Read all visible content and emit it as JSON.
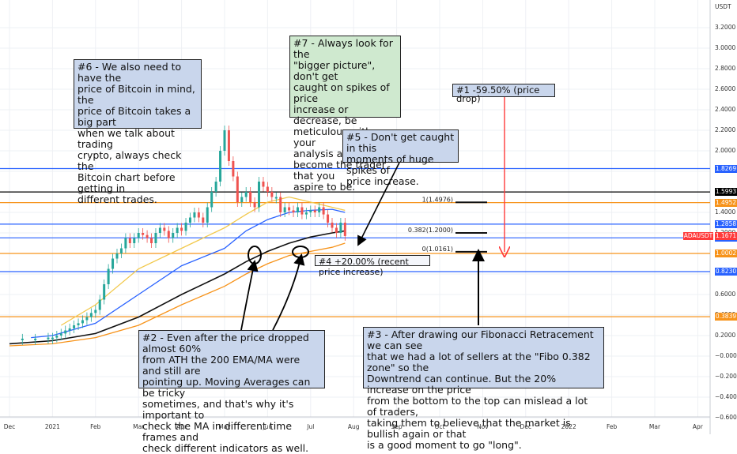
{
  "chart_data": {
    "type": "line",
    "ticker_label": "ADAUSDT",
    "unit_label": "USDT",
    "y_ticks": [
      "3.2000",
      "3.0000",
      "2.8000",
      "2.6000",
      "2.4000",
      "2.2000",
      "2.0000",
      "1.8000",
      "1.6000",
      "1.4000",
      "1.2000",
      "1.0000",
      "0.8000",
      "0.6000",
      "0.4000",
      "0.2000",
      "−0.0000",
      "−0.2000",
      "−0.4000",
      "−0.6000"
    ],
    "y_tick_values": [
      3.2,
      3.0,
      2.8,
      2.6,
      2.4,
      2.2,
      2.0,
      1.8,
      1.6,
      1.4,
      1.2,
      1.0,
      0.8,
      0.6,
      0.4,
      0.2,
      0.0,
      -0.2,
      -0.4,
      -0.6
    ],
    "ylim": [
      -0.65,
      3.35
    ],
    "x_ticks": [
      "Dec",
      "2021",
      "Feb",
      "Mar",
      "Apr",
      "May",
      "Jun",
      "Jul",
      "Aug",
      "Sep",
      "Oct",
      "Nov",
      "Dec",
      "2022",
      "Feb",
      "Mar",
      "Apr"
    ],
    "x_tick_months": [
      0,
      1,
      2,
      3,
      4,
      5,
      6,
      7,
      8,
      9,
      10,
      11,
      12,
      13,
      14,
      15,
      16
    ],
    "price_series": {
      "name": "ADAUSDT",
      "x_months": [
        0,
        0.3,
        0.6,
        0.9,
        1.0,
        1.1,
        1.2,
        1.3,
        1.4,
        1.5,
        1.6,
        1.7,
        1.8,
        1.9,
        2.0,
        2.1,
        2.2,
        2.3,
        2.4,
        2.5,
        2.6,
        2.7,
        2.8,
        2.9,
        3.0,
        3.1,
        3.2,
        3.3,
        3.4,
        3.5,
        3.6,
        3.7,
        3.8,
        3.9,
        4.0,
        4.1,
        4.2,
        4.3,
        4.4,
        4.5,
        4.6,
        4.7,
        4.8,
        4.9,
        5.0,
        5.1,
        5.2,
        5.3,
        5.4,
        5.5,
        5.6,
        5.7,
        5.8,
        5.9,
        6.0,
        6.1,
        6.2,
        6.3,
        6.4,
        6.5,
        6.6,
        6.7,
        6.8,
        6.9,
        7.0,
        7.1,
        7.2,
        7.3,
        7.4,
        7.5,
        7.6,
        7.7,
        7.8
      ],
      "values": [
        0.16,
        0.17,
        0.17,
        0.18,
        0.18,
        0.2,
        0.22,
        0.25,
        0.27,
        0.3,
        0.32,
        0.35,
        0.38,
        0.42,
        0.45,
        0.55,
        0.7,
        0.85,
        0.95,
        1.0,
        1.05,
        1.15,
        1.1,
        1.15,
        1.2,
        1.18,
        1.15,
        1.1,
        1.2,
        1.25,
        1.22,
        1.15,
        1.2,
        1.25,
        1.22,
        1.3,
        1.35,
        1.4,
        1.35,
        1.3,
        1.45,
        1.6,
        1.7,
        2.0,
        2.2,
        1.9,
        1.75,
        1.5,
        1.55,
        1.6,
        1.5,
        1.45,
        1.7,
        1.65,
        1.6,
        1.55,
        1.55,
        1.4,
        1.45,
        1.42,
        1.4,
        1.45,
        1.38,
        1.4,
        1.42,
        1.4,
        1.45,
        1.38,
        1.3,
        1.25,
        1.2,
        1.3,
        1.17
      ]
    },
    "ma_series": [
      {
        "color": "#f2c94c",
        "x_months": [
          1.2,
          2,
          3,
          4,
          5,
          5.5,
          6,
          6.5,
          7,
          7.5,
          7.8
        ],
        "values": [
          0.3,
          0.5,
          0.85,
          1.05,
          1.25,
          1.38,
          1.5,
          1.55,
          1.5,
          1.45,
          1.42
        ]
      },
      {
        "color": "#2962ff",
        "x_months": [
          0.5,
          1,
          2,
          3,
          4,
          5,
          5.5,
          6,
          6.5,
          7,
          7.5,
          7.8
        ],
        "values": [
          0.18,
          0.2,
          0.32,
          0.6,
          0.88,
          1.05,
          1.22,
          1.33,
          1.4,
          1.42,
          1.43,
          1.4
        ]
      },
      {
        "color": "#111111",
        "x_months": [
          0,
          1,
          2,
          3,
          4,
          5,
          5.5,
          6,
          6.5,
          7,
          7.5,
          7.8
        ],
        "values": [
          0.12,
          0.15,
          0.22,
          0.38,
          0.6,
          0.8,
          0.92,
          1.02,
          1.1,
          1.16,
          1.2,
          1.22
        ]
      },
      {
        "color": "#f7931a",
        "x_months": [
          0,
          1,
          2,
          3,
          4,
          5,
          5.5,
          6,
          6.5,
          7,
          7.5,
          7.8
        ],
        "values": [
          0.1,
          0.12,
          0.18,
          0.3,
          0.5,
          0.68,
          0.8,
          0.9,
          0.98,
          1.02,
          1.06,
          1.1
        ]
      }
    ],
    "horizontal_levels": [
      {
        "value": 1.8269,
        "label": "1.8269",
        "color": "#2962ff"
      },
      {
        "value": 1.5993,
        "label": "1.5993",
        "color": "#000000"
      },
      {
        "value": 1.4952,
        "label": "1.4952",
        "color": "#f7931a"
      },
      {
        "value": 1.2858,
        "label": "1.2858",
        "color": "#2962ff"
      },
      {
        "value": 1.1525,
        "label": "1.1525",
        "color": "#2962ff"
      },
      {
        "value": 1.0002,
        "label": "1.0002",
        "color": "#f7931a"
      },
      {
        "value": 0.823,
        "label": "0.8230",
        "color": "#2962ff"
      },
      {
        "value": 0.3839,
        "label": "0.3839",
        "color": "#f7931a"
      }
    ],
    "current_price": {
      "value": 1.1671,
      "label": "1.1671",
      "ticker": "ADAUSDT",
      "color": "#ff3b3b"
    },
    "fib_levels": [
      {
        "value": 1.4976,
        "label": "1(1.4976)"
      },
      {
        "value": 1.2,
        "label": "0.382(1.2000)"
      },
      {
        "value": 1.0161,
        "label": "0(1.0161)"
      }
    ]
  },
  "notes": {
    "n1": "#1 -59.50% (price drop)",
    "n2": "#2 - Even after the price dropped almost 60%\nfrom ATH the 200 EMA/MA were and still are\npointing up. Moving Averages can be tricky\nsometimes, and that's why it's important to\ncheck the MA in different time frames and\ncheck different indicators as well.",
    "n3": "#3 - After drawing our Fibonacci Retracement we can see\nthat we had a lot of sellers at the \"Fibo 0.382 zone\" so the\nDowntrend can continue. But the 20% increase on the price\nfrom the bottom to the top can mislead a lot of traders,\ntaking them to believe that the market is bullish again or that\nis a good moment to go \"long\".",
    "n4": "#4 +20.00%  (recent price increase)",
    "n5": "#5 - Don't get caught in this\nmoments of huge spikes of\nprice increase.",
    "n6": "#6 - We also need to have the\nprice of Bitcoin in mind, the\nprice of Bitcoin takes a big part\nwhen we talk about trading\ncrypto, always check the\nBitcoin chart before getting in\ndifferent trades.",
    "n7": "#7 - Always look for the\n\"bigger picture\", don't get\ncaught on spikes of price\nincrease or decrease, be\nmeticulous with your\nanalysis and you will\nbecome the trader that you\naspire to be."
  }
}
